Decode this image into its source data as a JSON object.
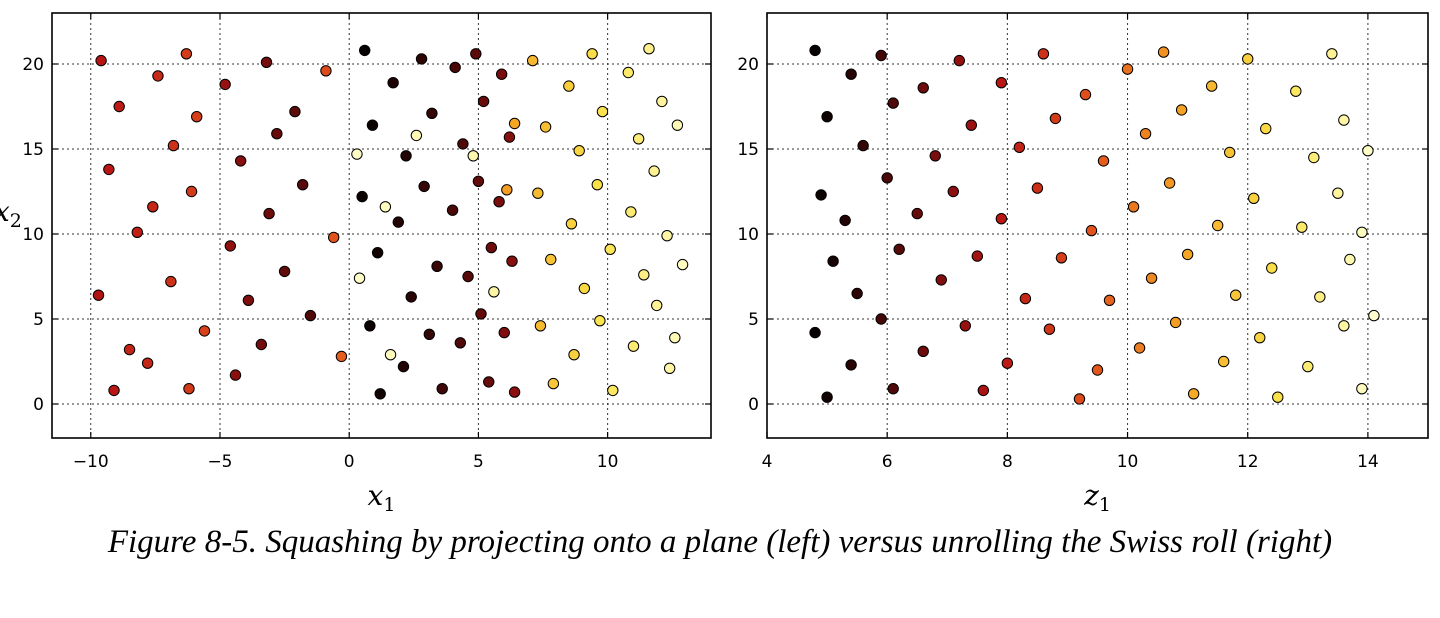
{
  "caption": "Figure 8-5. Squashing by projecting onto a plane (left) versus unrolling the Swiss roll (right)",
  "colormap": [
    "#000000",
    "#5a0a0a",
    "#b81414",
    "#e2521c",
    "#f5a623",
    "#fbe24a",
    "#ffffd0"
  ],
  "chart_data": [
    {
      "type": "scatter",
      "title": "",
      "xlabel": "x",
      "xlabel_sub": "1",
      "ylabel": "x",
      "ylabel_sub": "2",
      "xlim": [
        -11.5,
        14.0
      ],
      "ylim": [
        -2.0,
        23.0
      ],
      "xticks": [
        -10,
        -5,
        0,
        5,
        10
      ],
      "xtick_labels": [
        "−10",
        "−5",
        "0",
        "5",
        "10"
      ],
      "yticks": [
        0,
        5,
        10,
        15,
        20
      ],
      "ytick_labels": [
        "0",
        "5",
        "10",
        "15",
        "20"
      ],
      "grid": true,
      "color_by": "t (unrolled position, 4.7–14.1)",
      "points": [
        [
          -9.6,
          20.2,
          7.8
        ],
        [
          -8.9,
          17.5,
          8.0
        ],
        [
          -9.3,
          13.8,
          7.9
        ],
        [
          -8.2,
          10.1,
          8.1
        ],
        [
          -9.7,
          6.4,
          7.7
        ],
        [
          -8.5,
          3.2,
          8.2
        ],
        [
          -9.1,
          0.8,
          7.9
        ],
        [
          -7.4,
          19.3,
          8.4
        ],
        [
          -6.8,
          15.2,
          8.6
        ],
        [
          -7.6,
          11.6,
          8.3
        ],
        [
          -6.9,
          7.2,
          8.6
        ],
        [
          -7.8,
          2.4,
          8.3
        ],
        [
          -6.3,
          20.6,
          8.8
        ],
        [
          -5.9,
          16.9,
          8.9
        ],
        [
          -6.1,
          12.5,
          8.8
        ],
        [
          -5.6,
          4.3,
          9.0
        ],
        [
          -6.2,
          0.9,
          8.8
        ],
        [
          -4.8,
          18.8,
          7.3
        ],
        [
          -4.2,
          14.3,
          7.0
        ],
        [
          -4.6,
          9.3,
          7.2
        ],
        [
          -3.9,
          6.1,
          6.9
        ],
        [
          -4.4,
          1.7,
          7.1
        ],
        [
          -3.2,
          20.1,
          6.7
        ],
        [
          -2.8,
          15.9,
          6.5
        ],
        [
          -3.1,
          11.2,
          6.6
        ],
        [
          -2.5,
          7.8,
          6.4
        ],
        [
          -3.4,
          3.5,
          6.7
        ],
        [
          -2.1,
          17.2,
          6.3
        ],
        [
          -1.8,
          12.9,
          6.2
        ],
        [
          -1.5,
          5.2,
          6.1
        ],
        [
          -0.9,
          19.6,
          9.2
        ],
        [
          -0.6,
          9.8,
          9.4
        ],
        [
          -0.3,
          2.8,
          9.6
        ],
        [
          0.6,
          20.8,
          4.8
        ],
        [
          0.9,
          16.4,
          4.9
        ],
        [
          0.5,
          12.2,
          4.9
        ],
        [
          1.1,
          8.9,
          5.0
        ],
        [
          0.8,
          4.6,
          4.9
        ],
        [
          1.2,
          0.6,
          5.0
        ],
        [
          1.7,
          18.9,
          5.2
        ],
        [
          2.2,
          14.6,
          5.3
        ],
        [
          1.9,
          10.7,
          5.3
        ],
        [
          2.4,
          6.3,
          5.4
        ],
        [
          2.1,
          2.2,
          5.3
        ],
        [
          2.8,
          20.3,
          5.5
        ],
        [
          3.2,
          17.1,
          5.6
        ],
        [
          2.9,
          12.8,
          5.6
        ],
        [
          3.4,
          8.1,
          5.7
        ],
        [
          3.1,
          4.1,
          5.6
        ],
        [
          3.6,
          0.9,
          5.8
        ],
        [
          0.3,
          14.7,
          14.0
        ],
        [
          0.4,
          7.4,
          14.0
        ],
        [
          1.4,
          11.6,
          13.9
        ],
        [
          1.6,
          2.9,
          13.9
        ],
        [
          2.6,
          15.8,
          13.8
        ],
        [
          4.1,
          19.8,
          6.0
        ],
        [
          4.4,
          15.3,
          6.1
        ],
        [
          4.0,
          11.4,
          6.0
        ],
        [
          4.6,
          7.5,
          6.2
        ],
        [
          4.3,
          3.6,
          6.1
        ],
        [
          4.9,
          20.6,
          6.3
        ],
        [
          5.2,
          17.8,
          6.5
        ],
        [
          5.0,
          13.1,
          6.4
        ],
        [
          5.5,
          9.2,
          6.6
        ],
        [
          5.1,
          5.3,
          6.4
        ],
        [
          5.4,
          1.3,
          6.5
        ],
        [
          5.9,
          19.4,
          6.8
        ],
        [
          6.2,
          15.7,
          7.0
        ],
        [
          5.8,
          11.9,
          6.8
        ],
        [
          6.3,
          8.4,
          7.0
        ],
        [
          6.0,
          4.2,
          6.9
        ],
        [
          6.4,
          0.7,
          7.1
        ],
        [
          4.8,
          14.6,
          13.7
        ],
        [
          5.6,
          6.6,
          13.6
        ],
        [
          6.1,
          12.6,
          10.8
        ],
        [
          6.4,
          16.5,
          11.0
        ],
        [
          7.1,
          20.2,
          11.4
        ],
        [
          7.6,
          16.3,
          11.6
        ],
        [
          7.3,
          12.4,
          11.5
        ],
        [
          7.8,
          8.5,
          11.7
        ],
        [
          7.4,
          4.6,
          11.5
        ],
        [
          7.9,
          1.2,
          11.8
        ],
        [
          8.5,
          18.7,
          12.0
        ],
        [
          8.9,
          14.9,
          12.2
        ],
        [
          8.6,
          10.6,
          12.1
        ],
        [
          9.1,
          6.8,
          12.3
        ],
        [
          8.7,
          2.9,
          12.1
        ],
        [
          9.4,
          20.6,
          12.4
        ],
        [
          9.8,
          17.2,
          12.6
        ],
        [
          9.6,
          12.9,
          12.5
        ],
        [
          10.1,
          9.1,
          12.7
        ],
        [
          9.7,
          4.9,
          12.6
        ],
        [
          10.2,
          0.8,
          12.8
        ],
        [
          10.8,
          19.5,
          12.9
        ],
        [
          11.2,
          15.6,
          13.1
        ],
        [
          10.9,
          11.3,
          13.0
        ],
        [
          11.4,
          7.6,
          13.2
        ],
        [
          11.0,
          3.4,
          13.0
        ],
        [
          11.6,
          20.9,
          13.3
        ],
        [
          12.1,
          17.8,
          13.5
        ],
        [
          11.8,
          13.7,
          13.4
        ],
        [
          12.3,
          9.9,
          13.6
        ],
        [
          11.9,
          5.8,
          13.4
        ],
        [
          12.4,
          2.1,
          13.6
        ],
        [
          12.7,
          16.4,
          13.8
        ],
        [
          12.9,
          8.2,
          13.9
        ],
        [
          12.6,
          3.9,
          13.8
        ]
      ]
    },
    {
      "type": "scatter",
      "title": "",
      "xlabel": "z",
      "xlabel_sub": "1",
      "ylabel": "",
      "ylabel_sub": "",
      "xlim": [
        4.0,
        15.0
      ],
      "ylim": [
        -2.0,
        23.0
      ],
      "xticks": [
        4,
        6,
        8,
        10,
        12,
        14
      ],
      "xtick_labels": [
        "4",
        "6",
        "8",
        "10",
        "12",
        "14"
      ],
      "yticks": [
        0,
        5,
        10,
        15,
        20
      ],
      "ytick_labels": [
        "0",
        "5",
        "10",
        "15",
        "20"
      ],
      "grid": true,
      "color_by": "z1",
      "points": [
        [
          4.8,
          20.8,
          4.8
        ],
        [
          5.0,
          16.9,
          5.0
        ],
        [
          4.9,
          12.3,
          4.9
        ],
        [
          5.1,
          8.4,
          5.1
        ],
        [
          4.8,
          4.2,
          4.8
        ],
        [
          5.0,
          0.4,
          5.0
        ],
        [
          5.4,
          19.4,
          5.4
        ],
        [
          5.6,
          15.2,
          5.6
        ],
        [
          5.3,
          10.8,
          5.3
        ],
        [
          5.5,
          6.5,
          5.5
        ],
        [
          5.4,
          2.3,
          5.4
        ],
        [
          5.9,
          20.5,
          5.9
        ],
        [
          6.1,
          17.7,
          6.1
        ],
        [
          6.0,
          13.3,
          6.0
        ],
        [
          6.2,
          9.1,
          6.2
        ],
        [
          5.9,
          5.0,
          5.9
        ],
        [
          6.1,
          0.9,
          6.1
        ],
        [
          6.6,
          18.6,
          6.6
        ],
        [
          6.8,
          14.6,
          6.8
        ],
        [
          6.5,
          11.2,
          6.5
        ],
        [
          6.9,
          7.3,
          6.9
        ],
        [
          6.6,
          3.1,
          6.6
        ],
        [
          7.2,
          20.2,
          7.2
        ],
        [
          7.4,
          16.4,
          7.4
        ],
        [
          7.1,
          12.5,
          7.1
        ],
        [
          7.5,
          8.7,
          7.5
        ],
        [
          7.3,
          4.6,
          7.3
        ],
        [
          7.6,
          0.8,
          7.6
        ],
        [
          7.9,
          18.9,
          7.9
        ],
        [
          8.2,
          15.1,
          8.2
        ],
        [
          7.9,
          10.9,
          7.9
        ],
        [
          8.3,
          6.2,
          8.3
        ],
        [
          8.0,
          2.4,
          8.0
        ],
        [
          8.6,
          20.6,
          8.6
        ],
        [
          8.8,
          16.8,
          8.8
        ],
        [
          8.5,
          12.7,
          8.5
        ],
        [
          8.9,
          8.6,
          8.9
        ],
        [
          8.7,
          4.4,
          8.7
        ],
        [
          9.2,
          0.3,
          9.2
        ],
        [
          9.3,
          18.2,
          9.3
        ],
        [
          9.6,
          14.3,
          9.6
        ],
        [
          9.4,
          10.2,
          9.4
        ],
        [
          9.7,
          6.1,
          9.7
        ],
        [
          9.5,
          2.0,
          9.5
        ],
        [
          10.0,
          19.7,
          10.0
        ],
        [
          10.3,
          15.9,
          10.3
        ],
        [
          10.1,
          11.6,
          10.1
        ],
        [
          10.4,
          7.4,
          10.4
        ],
        [
          10.2,
          3.3,
          10.2
        ],
        [
          10.6,
          20.7,
          10.6
        ],
        [
          10.9,
          17.3,
          10.9
        ],
        [
          10.7,
          13.0,
          10.7
        ],
        [
          11.0,
          8.8,
          11.0
        ],
        [
          10.8,
          4.8,
          10.8
        ],
        [
          11.1,
          0.6,
          11.1
        ],
        [
          11.4,
          18.7,
          11.4
        ],
        [
          11.7,
          14.8,
          11.7
        ],
        [
          11.5,
          10.5,
          11.5
        ],
        [
          11.8,
          6.4,
          11.8
        ],
        [
          11.6,
          2.5,
          11.6
        ],
        [
          12.0,
          20.3,
          12.0
        ],
        [
          12.3,
          16.2,
          12.3
        ],
        [
          12.1,
          12.1,
          12.1
        ],
        [
          12.4,
          8.0,
          12.4
        ],
        [
          12.2,
          3.9,
          12.2
        ],
        [
          12.5,
          0.4,
          12.5
        ],
        [
          12.8,
          18.4,
          12.8
        ],
        [
          13.1,
          14.5,
          13.1
        ],
        [
          12.9,
          10.4,
          12.9
        ],
        [
          13.2,
          6.3,
          13.2
        ],
        [
          13.0,
          2.2,
          13.0
        ],
        [
          13.4,
          20.6,
          13.4
        ],
        [
          13.6,
          16.7,
          13.6
        ],
        [
          13.5,
          12.4,
          13.5
        ],
        [
          13.7,
          8.5,
          13.7
        ],
        [
          13.6,
          4.6,
          13.6
        ],
        [
          13.9,
          0.9,
          13.9
        ],
        [
          14.0,
          14.9,
          14.0
        ],
        [
          13.9,
          10.1,
          13.9
        ],
        [
          14.1,
          5.2,
          14.1
        ]
      ]
    }
  ]
}
